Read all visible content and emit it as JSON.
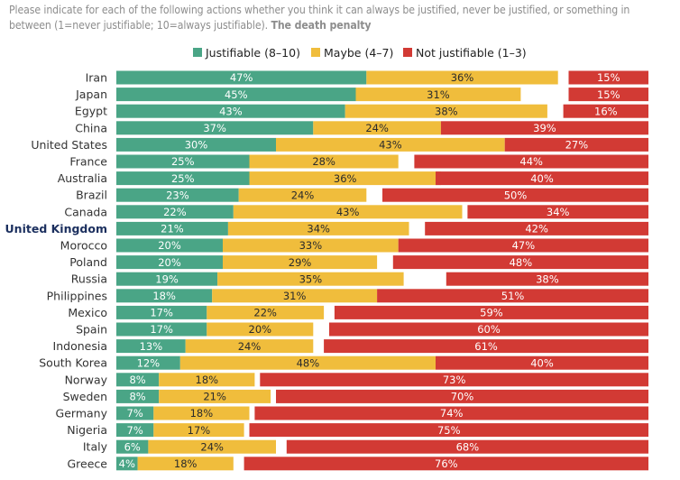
{
  "header": {
    "question": "Please indicate for each of the following actions whether you think it can always be justified, never be justified, or something in between (1=never justifiable; 10=always justifiable).",
    "title": "The death penalty"
  },
  "legend": [
    {
      "label": "Justifiable (8–10)",
      "color": "#4aa586"
    },
    {
      "label": "Maybe (4–7)",
      "color": "#f0bd3c"
    },
    {
      "label": "Not justifiable (1–3)",
      "color": "#d23a34"
    }
  ],
  "chart_data": {
    "type": "bar",
    "orientation": "horizontal",
    "stacked": true,
    "title": "The death penalty",
    "highlight": "United Kingdom",
    "categories": [
      "Iran",
      "Japan",
      "Egypt",
      "China",
      "United States",
      "France",
      "Australia",
      "Brazil",
      "Canada",
      "United Kingdom",
      "Morocco",
      "Poland",
      "Russia",
      "Philippines",
      "Mexico",
      "Spain",
      "Indonesia",
      "South Korea",
      "Norway",
      "Sweden",
      "Germany",
      "Nigeria",
      "Italy",
      "Greece"
    ],
    "series": [
      {
        "name": "Justifiable (8–10)",
        "color": "#4aa586",
        "position": "left",
        "values": [
          47,
          45,
          43,
          37,
          30,
          25,
          25,
          23,
          22,
          21,
          20,
          20,
          19,
          18,
          17,
          17,
          13,
          12,
          8,
          8,
          7,
          7,
          6,
          4
        ]
      },
      {
        "name": "Maybe (4–7)",
        "color": "#f0bd3c",
        "position": "middle",
        "values": [
          36,
          31,
          38,
          24,
          43,
          28,
          36,
          24,
          43,
          34,
          33,
          29,
          35,
          31,
          22,
          20,
          24,
          48,
          18,
          21,
          18,
          17,
          24,
          18
        ]
      },
      {
        "name": "Not justifiable (1–3)",
        "color": "#d23a34",
        "position": "right",
        "values": [
          15,
          15,
          16,
          39,
          27,
          44,
          40,
          50,
          34,
          42,
          47,
          48,
          38,
          51,
          59,
          60,
          61,
          40,
          73,
          70,
          74,
          75,
          68,
          76
        ]
      }
    ],
    "value_suffix": "%",
    "xlim": [
      0,
      100
    ]
  }
}
